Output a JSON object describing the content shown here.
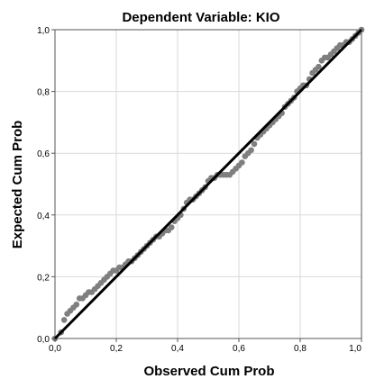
{
  "chart_data": {
    "type": "scatter",
    "title": "Dependent Variable: KIO",
    "xlabel": "Observed Cum Prob",
    "ylabel": "Expected Cum Prob",
    "xlim": [
      0,
      1
    ],
    "ylim": [
      0,
      1
    ],
    "x_ticks": [
      "0,0",
      "0,2",
      "0,4",
      "0,6",
      "0,8",
      "1,0"
    ],
    "y_ticks": [
      "0,0",
      "0,2",
      "0,4",
      "0,6",
      "0,8",
      "1,0"
    ],
    "grid": true,
    "reference_line": {
      "from": [
        0,
        0
      ],
      "to": [
        1,
        1
      ]
    },
    "colors": {
      "points": "#7f7f7f",
      "reference_line": "#000000",
      "grid": "#d9d9d9",
      "frame": "#555555"
    },
    "series": [
      {
        "x": [
          0.0,
          0.02,
          0.03,
          0.04,
          0.05,
          0.06,
          0.07,
          0.08,
          0.09,
          0.1,
          0.11,
          0.12,
          0.13,
          0.14,
          0.15,
          0.16,
          0.17,
          0.18,
          0.19,
          0.2,
          0.21,
          0.22,
          0.23,
          0.24,
          0.25,
          0.26,
          0.27,
          0.28,
          0.29,
          0.3,
          0.31,
          0.32,
          0.33,
          0.34,
          0.35,
          0.36,
          0.37,
          0.38,
          0.39,
          0.4,
          0.41,
          0.42,
          0.43,
          0.44,
          0.45,
          0.46,
          0.47,
          0.48,
          0.49,
          0.5,
          0.51,
          0.52,
          0.53,
          0.54,
          0.55,
          0.56,
          0.57,
          0.58,
          0.59,
          0.6,
          0.61,
          0.62,
          0.63,
          0.64,
          0.65,
          0.66,
          0.67,
          0.68,
          0.69,
          0.7,
          0.71,
          0.72,
          0.73,
          0.74,
          0.75,
          0.76,
          0.77,
          0.78,
          0.79,
          0.8,
          0.81,
          0.82,
          0.83,
          0.84,
          0.85,
          0.86,
          0.87,
          0.88,
          0.89,
          0.9,
          0.91,
          0.92,
          0.93,
          0.94,
          0.95,
          0.96,
          0.97,
          0.98,
          0.99,
          1.0
        ],
        "y": [
          0.0,
          0.02,
          0.06,
          0.08,
          0.09,
          0.1,
          0.11,
          0.13,
          0.13,
          0.14,
          0.15,
          0.15,
          0.16,
          0.17,
          0.18,
          0.19,
          0.2,
          0.21,
          0.22,
          0.22,
          0.23,
          0.23,
          0.24,
          0.25,
          0.25,
          0.26,
          0.27,
          0.28,
          0.29,
          0.3,
          0.31,
          0.32,
          0.33,
          0.33,
          0.34,
          0.35,
          0.35,
          0.36,
          0.38,
          0.39,
          0.4,
          0.42,
          0.44,
          0.45,
          0.45,
          0.46,
          0.47,
          0.48,
          0.49,
          0.51,
          0.52,
          0.52,
          0.53,
          0.53,
          0.53,
          0.53,
          0.53,
          0.54,
          0.55,
          0.56,
          0.57,
          0.59,
          0.6,
          0.61,
          0.63,
          0.65,
          0.66,
          0.67,
          0.68,
          0.69,
          0.7,
          0.71,
          0.72,
          0.73,
          0.75,
          0.76,
          0.77,
          0.78,
          0.8,
          0.81,
          0.82,
          0.82,
          0.84,
          0.86,
          0.87,
          0.88,
          0.9,
          0.91,
          0.91,
          0.92,
          0.93,
          0.94,
          0.95,
          0.95,
          0.96,
          0.96,
          0.97,
          0.98,
          0.99,
          1.0
        ]
      }
    ]
  }
}
